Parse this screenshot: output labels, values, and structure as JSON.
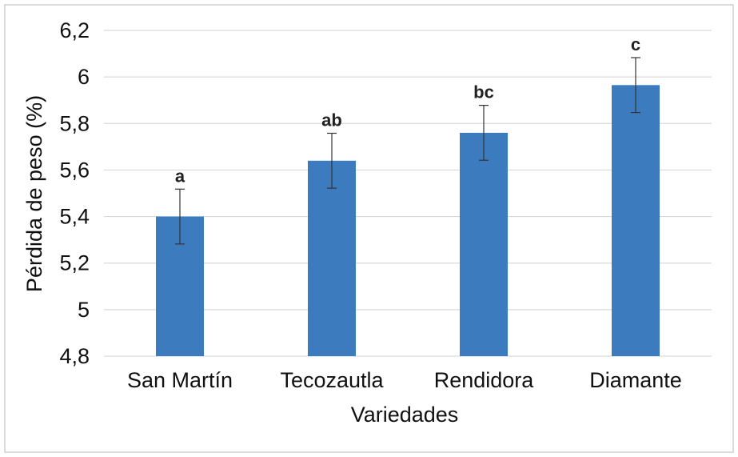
{
  "chart_data": {
    "type": "bar",
    "xlabel": "Variedades",
    "ylabel": "Pérdida de peso (%)",
    "ylim": [
      4.8,
      6.2
    ],
    "yticks": [
      "4,8",
      "5",
      "5,2",
      "5,4",
      "5,6",
      "5,8",
      "6",
      "6,2"
    ],
    "ytick_values": [
      4.8,
      5.0,
      5.2,
      5.4,
      5.6,
      5.8,
      6.0,
      6.2
    ],
    "grid": true,
    "legend": "none",
    "bar_color": "#3d7bbf",
    "categories": [
      "San Martín",
      "Tecozautla",
      "Rendidora",
      "Diamante"
    ],
    "values": [
      5.4,
      5.64,
      5.76,
      5.965
    ],
    "error": [
      0.118,
      0.118,
      0.118,
      0.118
    ],
    "significance": [
      "a",
      "ab",
      "bc",
      "c"
    ]
  }
}
